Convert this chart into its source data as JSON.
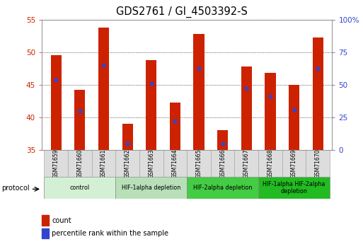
{
  "title": "GDS2761 / GI_4503392-S",
  "samples": [
    "GSM71659",
    "GSM71660",
    "GSM71661",
    "GSM71662",
    "GSM71663",
    "GSM71664",
    "GSM71665",
    "GSM71666",
    "GSM71667",
    "GSM71668",
    "GSM71669",
    "GSM71670"
  ],
  "bar_values": [
    49.5,
    44.2,
    53.8,
    39.0,
    48.8,
    42.3,
    52.8,
    38.0,
    47.8,
    46.8,
    45.0,
    52.2
  ],
  "blue_markers": [
    45.8,
    41.0,
    48.0,
    36.0,
    45.2,
    39.5,
    47.5,
    36.0,
    44.5,
    43.3,
    41.2,
    47.5
  ],
  "ylim_left": [
    35,
    55
  ],
  "ylim_right": [
    0,
    100
  ],
  "yticks_left": [
    35,
    40,
    45,
    50,
    55
  ],
  "yticks_right": [
    0,
    25,
    50,
    75,
    100
  ],
  "ytick_labels_right": [
    "0",
    "25",
    "50",
    "75",
    "100%"
  ],
  "bar_color": "#cc2200",
  "blue_color": "#3344cc",
  "groups": [
    {
      "label": "control",
      "start": 0,
      "end": 2,
      "color": "#d4f0d4"
    },
    {
      "label": "HIF-1alpha depletion",
      "start": 3,
      "end": 5,
      "color": "#b8e0b8"
    },
    {
      "label": "HIF-2alpha depletion",
      "start": 6,
      "end": 8,
      "color": "#44cc44"
    },
    {
      "label": "HIF-1alpha HIF-2alpha\ndepletion",
      "start": 9,
      "end": 11,
      "color": "#22bb22"
    }
  ],
  "left_tick_color": "#cc2200",
  "right_tick_color": "#3344cc",
  "tick_label_fontsize": 7.5,
  "title_fontsize": 10.5,
  "bar_width": 0.45
}
